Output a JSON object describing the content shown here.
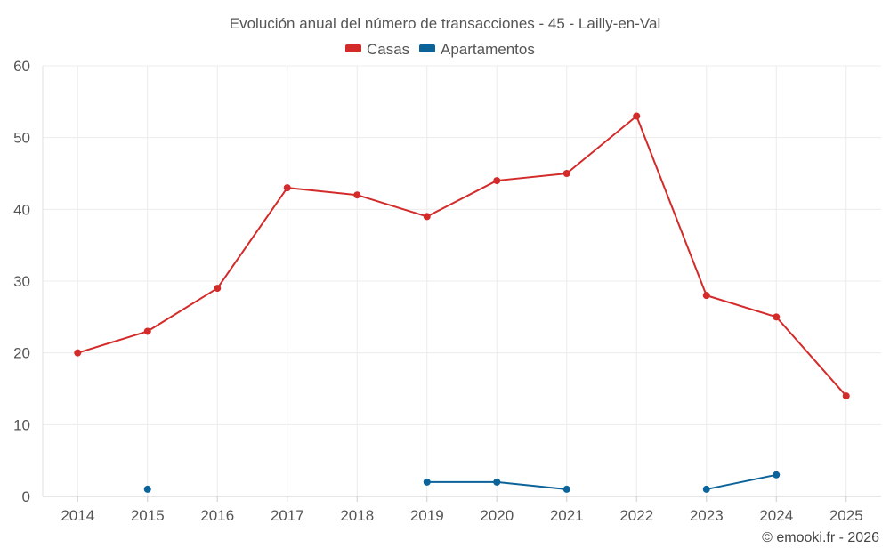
{
  "chart_data": {
    "type": "line",
    "title": "Evolución anual del número de transacciones - 45 - Lailly-en-Val",
    "categories": [
      "2014",
      "2015",
      "2016",
      "2017",
      "2018",
      "2019",
      "2020",
      "2021",
      "2022",
      "2023",
      "2024",
      "2025"
    ],
    "ylim": [
      0,
      60
    ],
    "yticks": [
      "0",
      "10",
      "20",
      "30",
      "40",
      "50",
      "60"
    ],
    "grid": true,
    "legend_position": "top-center",
    "series": [
      {
        "name": "Casas",
        "color": "#d32a2a",
        "values": [
          20,
          23,
          29,
          43,
          42,
          39,
          44,
          45,
          53,
          28,
          25,
          14
        ]
      },
      {
        "name": "Apartamentos",
        "color": "#0b6399",
        "values": [
          null,
          1,
          null,
          null,
          null,
          2,
          2,
          1,
          null,
          1,
          3,
          null
        ]
      }
    ],
    "credit": "© emooki.fr - 2026"
  }
}
